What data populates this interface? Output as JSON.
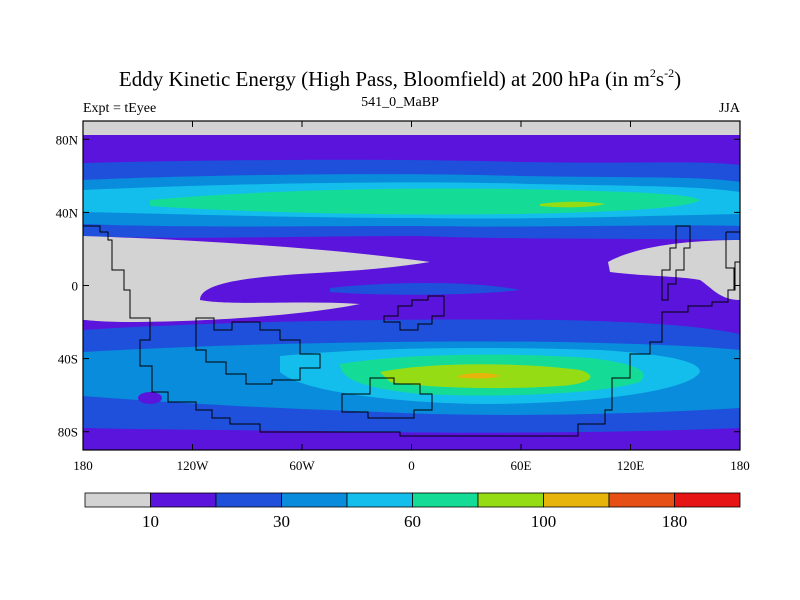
{
  "title": {
    "main": "Eddy Kinetic Energy (High Pass, Bloomfield) at 200 hPa (in m",
    "sup1": "2",
    "mid": "s",
    "sup2": "-2",
    "end": ")"
  },
  "left_label": "Expt = tEyee",
  "center_label": "541_0_MaBP",
  "right_label": "JJA",
  "map": {
    "lat_ticks": [
      "80N",
      "40N",
      "0",
      "40S",
      "80S"
    ],
    "lon_ticks": [
      "180",
      "120W",
      "60W",
      "0",
      "60E",
      "120E",
      "180"
    ],
    "lat_tick_values": [
      80,
      40,
      0,
      -40,
      -80
    ],
    "lon_tick_values": [
      -180,
      -120,
      -60,
      0,
      60,
      120,
      180
    ],
    "lat_range": [
      -90,
      90
    ],
    "lon_range": [
      -180,
      180
    ]
  },
  "colorbar": {
    "colors": [
      "#d3d3d3",
      "#5a14dc",
      "#1e50dc",
      "#0a8cdc",
      "#14beec",
      "#14dc96",
      "#96dc14",
      "#e6b40a",
      "#e65014",
      "#e61414"
    ],
    "labels": [
      "10",
      "30",
      "60",
      "100",
      "180"
    ],
    "label_after_box": [
      1,
      3,
      5,
      7,
      9
    ]
  }
}
